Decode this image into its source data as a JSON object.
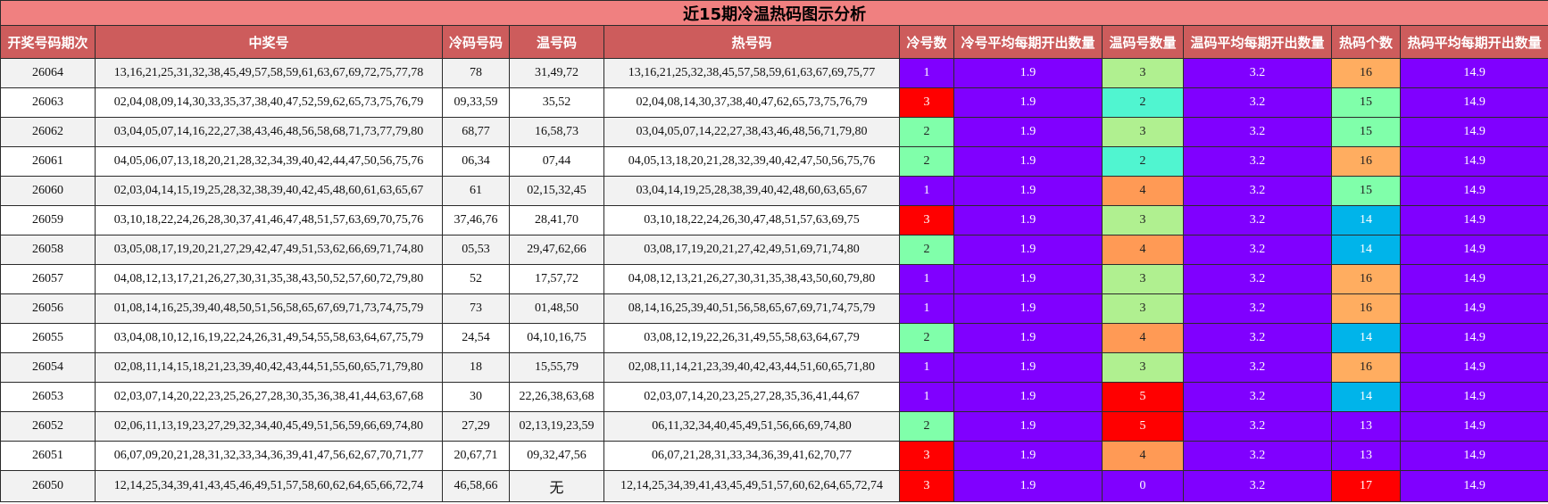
{
  "title": "近15期冷温热码图示分析",
  "headers": [
    "开奖号码期次",
    "中奖号",
    "冷码号码",
    "温号码",
    "热号码",
    "冷号数",
    "冷号平均每期开出数量",
    "温码号数量",
    "温码平均每期开出数量",
    "热码个数",
    "热码平均每期开出数量"
  ],
  "colors": {
    "title_bg": "#f08080",
    "header_bg": "#cd5c5c",
    "purple": "#8000ff",
    "red": "#ff0000",
    "mint": "#80ffaa",
    "light_green": "#b0f090",
    "teal": "#50f5d0",
    "orange": "#ff9a55",
    "light_orange": "#ffad60",
    "sky": "#00b4ea"
  },
  "rows": [
    {
      "period": "26064",
      "winning": "13,16,21,25,31,32,38,45,49,57,58,59,61,63,67,69,72,75,77,78",
      "cold": "78",
      "warm": "31,49,72",
      "hot": "13,16,21,25,32,38,45,57,58,59,61,63,67,69,75,77",
      "cold_count": "1",
      "cold_avg": "1.9",
      "warm_count": "3",
      "warm_avg": "3.2",
      "hot_count": "16",
      "hot_avg": "14.9",
      "cold_color": "purple",
      "warm_color": "light_green",
      "hot_color": "light_orange"
    },
    {
      "period": "26063",
      "winning": "02,04,08,09,14,30,33,35,37,38,40,47,52,59,62,65,73,75,76,79",
      "cold": "09,33,59",
      "warm": "35,52",
      "hot": "02,04,08,14,30,37,38,40,47,62,65,73,75,76,79",
      "cold_count": "3",
      "cold_avg": "1.9",
      "warm_count": "2",
      "warm_avg": "3.2",
      "hot_count": "15",
      "hot_avg": "14.9",
      "cold_color": "red",
      "warm_color": "teal",
      "hot_color": "mint"
    },
    {
      "period": "26062",
      "winning": "03,04,05,07,14,16,22,27,38,43,46,48,56,58,68,71,73,77,79,80",
      "cold": "68,77",
      "warm": "16,58,73",
      "hot": "03,04,05,07,14,22,27,38,43,46,48,56,71,79,80",
      "cold_count": "2",
      "cold_avg": "1.9",
      "warm_count": "3",
      "warm_avg": "3.2",
      "hot_count": "15",
      "hot_avg": "14.9",
      "cold_color": "mint",
      "warm_color": "light_green",
      "hot_color": "mint"
    },
    {
      "period": "26061",
      "winning": "04,05,06,07,13,18,20,21,28,32,34,39,40,42,44,47,50,56,75,76",
      "cold": "06,34",
      "warm": "07,44",
      "hot": "04,05,13,18,20,21,28,32,39,40,42,47,50,56,75,76",
      "cold_count": "2",
      "cold_avg": "1.9",
      "warm_count": "2",
      "warm_avg": "3.2",
      "hot_count": "16",
      "hot_avg": "14.9",
      "cold_color": "mint",
      "warm_color": "teal",
      "hot_color": "light_orange"
    },
    {
      "period": "26060",
      "winning": "02,03,04,14,15,19,25,28,32,38,39,40,42,45,48,60,61,63,65,67",
      "cold": "61",
      "warm": "02,15,32,45",
      "hot": "03,04,14,19,25,28,38,39,40,42,48,60,63,65,67",
      "cold_count": "1",
      "cold_avg": "1.9",
      "warm_count": "4",
      "warm_avg": "3.2",
      "hot_count": "15",
      "hot_avg": "14.9",
      "cold_color": "purple",
      "warm_color": "orange",
      "hot_color": "mint"
    },
    {
      "period": "26059",
      "winning": "03,10,18,22,24,26,28,30,37,41,46,47,48,51,57,63,69,70,75,76",
      "cold": "37,46,76",
      "warm": "28,41,70",
      "hot": "03,10,18,22,24,26,30,47,48,51,57,63,69,75",
      "cold_count": "3",
      "cold_avg": "1.9",
      "warm_count": "3",
      "warm_avg": "3.2",
      "hot_count": "14",
      "hot_avg": "14.9",
      "cold_color": "red",
      "warm_color": "light_green",
      "hot_color": "sky"
    },
    {
      "period": "26058",
      "winning": "03,05,08,17,19,20,21,27,29,42,47,49,51,53,62,66,69,71,74,80",
      "cold": "05,53",
      "warm": "29,47,62,66",
      "hot": "03,08,17,19,20,21,27,42,49,51,69,71,74,80",
      "cold_count": "2",
      "cold_avg": "1.9",
      "warm_count": "4",
      "warm_avg": "3.2",
      "hot_count": "14",
      "hot_avg": "14.9",
      "cold_color": "mint",
      "warm_color": "orange",
      "hot_color": "sky"
    },
    {
      "period": "26057",
      "winning": "04,08,12,13,17,21,26,27,30,31,35,38,43,50,52,57,60,72,79,80",
      "cold": "52",
      "warm": "17,57,72",
      "hot": "04,08,12,13,21,26,27,30,31,35,38,43,50,60,79,80",
      "cold_count": "1",
      "cold_avg": "1.9",
      "warm_count": "3",
      "warm_avg": "3.2",
      "hot_count": "16",
      "hot_avg": "14.9",
      "cold_color": "purple",
      "warm_color": "light_green",
      "hot_color": "light_orange"
    },
    {
      "period": "26056",
      "winning": "01,08,14,16,25,39,40,48,50,51,56,58,65,67,69,71,73,74,75,79",
      "cold": "73",
      "warm": "01,48,50",
      "hot": "08,14,16,25,39,40,51,56,58,65,67,69,71,74,75,79",
      "cold_count": "1",
      "cold_avg": "1.9",
      "warm_count": "3",
      "warm_avg": "3.2",
      "hot_count": "16",
      "hot_avg": "14.9",
      "cold_color": "purple",
      "warm_color": "light_green",
      "hot_color": "light_orange"
    },
    {
      "period": "26055",
      "winning": "03,04,08,10,12,16,19,22,24,26,31,49,54,55,58,63,64,67,75,79",
      "cold": "24,54",
      "warm": "04,10,16,75",
      "hot": "03,08,12,19,22,26,31,49,55,58,63,64,67,79",
      "cold_count": "2",
      "cold_avg": "1.9",
      "warm_count": "4",
      "warm_avg": "3.2",
      "hot_count": "14",
      "hot_avg": "14.9",
      "cold_color": "mint",
      "warm_color": "orange",
      "hot_color": "sky"
    },
    {
      "period": "26054",
      "winning": "02,08,11,14,15,18,21,23,39,40,42,43,44,51,55,60,65,71,79,80",
      "cold": "18",
      "warm": "15,55,79",
      "hot": "02,08,11,14,21,23,39,40,42,43,44,51,60,65,71,80",
      "cold_count": "1",
      "cold_avg": "1.9",
      "warm_count": "3",
      "warm_avg": "3.2",
      "hot_count": "16",
      "hot_avg": "14.9",
      "cold_color": "purple",
      "warm_color": "light_green",
      "hot_color": "light_orange"
    },
    {
      "period": "26053",
      "winning": "02,03,07,14,20,22,23,25,26,27,28,30,35,36,38,41,44,63,67,68",
      "cold": "30",
      "warm": "22,26,38,63,68",
      "hot": "02,03,07,14,20,23,25,27,28,35,36,41,44,67",
      "cold_count": "1",
      "cold_avg": "1.9",
      "warm_count": "5",
      "warm_avg": "3.2",
      "hot_count": "14",
      "hot_avg": "14.9",
      "cold_color": "purple",
      "warm_color": "red",
      "hot_color": "sky"
    },
    {
      "period": "26052",
      "winning": "02,06,11,13,19,23,27,29,32,34,40,45,49,51,56,59,66,69,74,80",
      "cold": "27,29",
      "warm": "02,13,19,23,59",
      "hot": "06,11,32,34,40,45,49,51,56,66,69,74,80",
      "cold_count": "2",
      "cold_avg": "1.9",
      "warm_count": "5",
      "warm_avg": "3.2",
      "hot_count": "13",
      "hot_avg": "14.9",
      "cold_color": "mint",
      "warm_color": "red",
      "hot_color": "purple"
    },
    {
      "period": "26051",
      "winning": "06,07,09,20,21,28,31,32,33,34,36,39,41,47,56,62,67,70,71,77",
      "cold": "20,67,71",
      "warm": "09,32,47,56",
      "hot": "06,07,21,28,31,33,34,36,39,41,62,70,77",
      "cold_count": "3",
      "cold_avg": "1.9",
      "warm_count": "4",
      "warm_avg": "3.2",
      "hot_count": "13",
      "hot_avg": "14.9",
      "cold_color": "red",
      "warm_color": "orange",
      "hot_color": "purple"
    },
    {
      "period": "26050",
      "winning": "12,14,25,34,39,41,43,45,46,49,51,57,58,60,62,64,65,66,72,74",
      "cold": "46,58,66",
      "warm": "无",
      "hot": "12,14,25,34,39,41,43,45,49,51,57,60,62,64,65,72,74",
      "cold_count": "3",
      "cold_avg": "1.9",
      "warm_count": "0",
      "warm_avg": "3.2",
      "hot_count": "17",
      "hot_avg": "14.9",
      "cold_color": "red",
      "warm_color": "purple",
      "hot_color": "red"
    }
  ]
}
